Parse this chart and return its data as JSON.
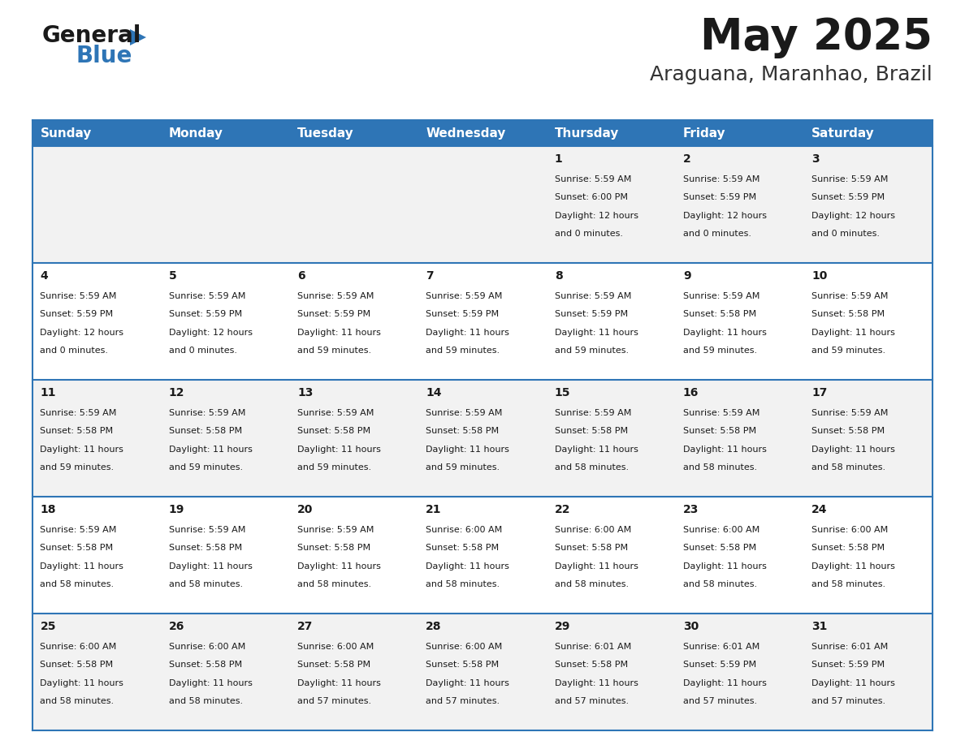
{
  "title": "May 2025",
  "subtitle": "Araguana, Maranhao, Brazil",
  "header_bg": "#2E75B6",
  "header_text": "#FFFFFF",
  "row_bg_odd": "#F2F2F2",
  "row_bg_even": "#FFFFFF",
  "border_color": "#2E75B6",
  "day_names": [
    "Sunday",
    "Monday",
    "Tuesday",
    "Wednesday",
    "Thursday",
    "Friday",
    "Saturday"
  ],
  "days": [
    {
      "day": 1,
      "col": 4,
      "row": 0,
      "sunrise": "5:59 AM",
      "sunset": "6:00 PM",
      "daylight_h": "12 hours",
      "daylight_m": "and 0 minutes."
    },
    {
      "day": 2,
      "col": 5,
      "row": 0,
      "sunrise": "5:59 AM",
      "sunset": "5:59 PM",
      "daylight_h": "12 hours",
      "daylight_m": "and 0 minutes."
    },
    {
      "day": 3,
      "col": 6,
      "row": 0,
      "sunrise": "5:59 AM",
      "sunset": "5:59 PM",
      "daylight_h": "12 hours",
      "daylight_m": "and 0 minutes."
    },
    {
      "day": 4,
      "col": 0,
      "row": 1,
      "sunrise": "5:59 AM",
      "sunset": "5:59 PM",
      "daylight_h": "12 hours",
      "daylight_m": "and 0 minutes."
    },
    {
      "day": 5,
      "col": 1,
      "row": 1,
      "sunrise": "5:59 AM",
      "sunset": "5:59 PM",
      "daylight_h": "12 hours",
      "daylight_m": "and 0 minutes."
    },
    {
      "day": 6,
      "col": 2,
      "row": 1,
      "sunrise": "5:59 AM",
      "sunset": "5:59 PM",
      "daylight_h": "11 hours",
      "daylight_m": "and 59 minutes."
    },
    {
      "day": 7,
      "col": 3,
      "row": 1,
      "sunrise": "5:59 AM",
      "sunset": "5:59 PM",
      "daylight_h": "11 hours",
      "daylight_m": "and 59 minutes."
    },
    {
      "day": 8,
      "col": 4,
      "row": 1,
      "sunrise": "5:59 AM",
      "sunset": "5:59 PM",
      "daylight_h": "11 hours",
      "daylight_m": "and 59 minutes."
    },
    {
      "day": 9,
      "col": 5,
      "row": 1,
      "sunrise": "5:59 AM",
      "sunset": "5:58 PM",
      "daylight_h": "11 hours",
      "daylight_m": "and 59 minutes."
    },
    {
      "day": 10,
      "col": 6,
      "row": 1,
      "sunrise": "5:59 AM",
      "sunset": "5:58 PM",
      "daylight_h": "11 hours",
      "daylight_m": "and 59 minutes."
    },
    {
      "day": 11,
      "col": 0,
      "row": 2,
      "sunrise": "5:59 AM",
      "sunset": "5:58 PM",
      "daylight_h": "11 hours",
      "daylight_m": "and 59 minutes."
    },
    {
      "day": 12,
      "col": 1,
      "row": 2,
      "sunrise": "5:59 AM",
      "sunset": "5:58 PM",
      "daylight_h": "11 hours",
      "daylight_m": "and 59 minutes."
    },
    {
      "day": 13,
      "col": 2,
      "row": 2,
      "sunrise": "5:59 AM",
      "sunset": "5:58 PM",
      "daylight_h": "11 hours",
      "daylight_m": "and 59 minutes."
    },
    {
      "day": 14,
      "col": 3,
      "row": 2,
      "sunrise": "5:59 AM",
      "sunset": "5:58 PM",
      "daylight_h": "11 hours",
      "daylight_m": "and 59 minutes."
    },
    {
      "day": 15,
      "col": 4,
      "row": 2,
      "sunrise": "5:59 AM",
      "sunset": "5:58 PM",
      "daylight_h": "11 hours",
      "daylight_m": "and 58 minutes."
    },
    {
      "day": 16,
      "col": 5,
      "row": 2,
      "sunrise": "5:59 AM",
      "sunset": "5:58 PM",
      "daylight_h": "11 hours",
      "daylight_m": "and 58 minutes."
    },
    {
      "day": 17,
      "col": 6,
      "row": 2,
      "sunrise": "5:59 AM",
      "sunset": "5:58 PM",
      "daylight_h": "11 hours",
      "daylight_m": "and 58 minutes."
    },
    {
      "day": 18,
      "col": 0,
      "row": 3,
      "sunrise": "5:59 AM",
      "sunset": "5:58 PM",
      "daylight_h": "11 hours",
      "daylight_m": "and 58 minutes."
    },
    {
      "day": 19,
      "col": 1,
      "row": 3,
      "sunrise": "5:59 AM",
      "sunset": "5:58 PM",
      "daylight_h": "11 hours",
      "daylight_m": "and 58 minutes."
    },
    {
      "day": 20,
      "col": 2,
      "row": 3,
      "sunrise": "5:59 AM",
      "sunset": "5:58 PM",
      "daylight_h": "11 hours",
      "daylight_m": "and 58 minutes."
    },
    {
      "day": 21,
      "col": 3,
      "row": 3,
      "sunrise": "6:00 AM",
      "sunset": "5:58 PM",
      "daylight_h": "11 hours",
      "daylight_m": "and 58 minutes."
    },
    {
      "day": 22,
      "col": 4,
      "row": 3,
      "sunrise": "6:00 AM",
      "sunset": "5:58 PM",
      "daylight_h": "11 hours",
      "daylight_m": "and 58 minutes."
    },
    {
      "day": 23,
      "col": 5,
      "row": 3,
      "sunrise": "6:00 AM",
      "sunset": "5:58 PM",
      "daylight_h": "11 hours",
      "daylight_m": "and 58 minutes."
    },
    {
      "day": 24,
      "col": 6,
      "row": 3,
      "sunrise": "6:00 AM",
      "sunset": "5:58 PM",
      "daylight_h": "11 hours",
      "daylight_m": "and 58 minutes."
    },
    {
      "day": 25,
      "col": 0,
      "row": 4,
      "sunrise": "6:00 AM",
      "sunset": "5:58 PM",
      "daylight_h": "11 hours",
      "daylight_m": "and 58 minutes."
    },
    {
      "day": 26,
      "col": 1,
      "row": 4,
      "sunrise": "6:00 AM",
      "sunset": "5:58 PM",
      "daylight_h": "11 hours",
      "daylight_m": "and 58 minutes."
    },
    {
      "day": 27,
      "col": 2,
      "row": 4,
      "sunrise": "6:00 AM",
      "sunset": "5:58 PM",
      "daylight_h": "11 hours",
      "daylight_m": "and 57 minutes."
    },
    {
      "day": 28,
      "col": 3,
      "row": 4,
      "sunrise": "6:00 AM",
      "sunset": "5:58 PM",
      "daylight_h": "11 hours",
      "daylight_m": "and 57 minutes."
    },
    {
      "day": 29,
      "col": 4,
      "row": 4,
      "sunrise": "6:01 AM",
      "sunset": "5:58 PM",
      "daylight_h": "11 hours",
      "daylight_m": "and 57 minutes."
    },
    {
      "day": 30,
      "col": 5,
      "row": 4,
      "sunrise": "6:01 AM",
      "sunset": "5:59 PM",
      "daylight_h": "11 hours",
      "daylight_m": "and 57 minutes."
    },
    {
      "day": 31,
      "col": 6,
      "row": 4,
      "sunrise": "6:01 AM",
      "sunset": "5:59 PM",
      "daylight_h": "11 hours",
      "daylight_m": "and 57 minutes."
    }
  ],
  "num_rows": 5,
  "num_cols": 7,
  "logo_general_color": "#1a1a1a",
  "logo_blue_color": "#2E75B6",
  "title_fontsize": 38,
  "subtitle_fontsize": 18,
  "header_fontsize": 11,
  "day_num_fontsize": 10,
  "cell_text_fontsize": 8
}
